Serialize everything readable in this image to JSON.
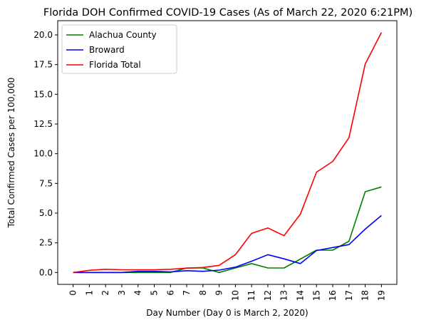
{
  "chart_data": {
    "type": "line",
    "title": "Florida DOH Confirmed COVID-19 Cases (As of March 22, 2020 6:21PM)",
    "xlabel": "Day Number (Day 0 is March 2, 2020)",
    "ylabel": "Total Confirmed Cases per 100,000",
    "x": [
      0,
      1,
      2,
      3,
      4,
      5,
      6,
      7,
      8,
      9,
      10,
      11,
      12,
      13,
      14,
      15,
      16,
      17,
      18,
      19
    ],
    "x_tick_labels": [
      "0",
      "1",
      "2",
      "3",
      "4",
      "5",
      "6",
      "7",
      "8",
      "9",
      "10",
      "11",
      "12",
      "13",
      "14",
      "15",
      "16",
      "17",
      "18",
      "19"
    ],
    "xlim": [
      -0.95,
      19.95
    ],
    "ylim": [
      -1.0,
      21.2
    ],
    "y_ticks": [
      0.0,
      2.5,
      5.0,
      7.5,
      10.0,
      12.5,
      15.0,
      17.5,
      20.0
    ],
    "y_tick_labels": [
      "0.0",
      "2.5",
      "5.0",
      "7.5",
      "10.0",
      "12.5",
      "15.0",
      "17.5",
      "20.0"
    ],
    "grid": false,
    "legend_position": "upper-left",
    "series": [
      {
        "name": "Alachua County",
        "color": "#008000",
        "values": [
          0,
          0,
          0,
          0,
          0,
          0,
          0,
          0.38,
          0.38,
          0,
          0.38,
          0.75,
          0.38,
          0.38,
          1.13,
          1.88,
          1.88,
          2.63,
          6.8,
          7.2
        ]
      },
      {
        "name": "Broward",
        "color": "#0000ff",
        "values": [
          0,
          0,
          0,
          0,
          0.1,
          0.1,
          0.05,
          0.15,
          0.1,
          0.2,
          0.45,
          0.95,
          1.5,
          1.15,
          0.75,
          1.85,
          2.1,
          2.35,
          3.65,
          4.8
        ]
      },
      {
        "name": "Florida Total",
        "color": "#ff0000",
        "values": [
          0,
          0.18,
          0.27,
          0.23,
          0.23,
          0.23,
          0.27,
          0.37,
          0.42,
          0.6,
          1.5,
          3.3,
          3.75,
          3.1,
          4.9,
          8.45,
          9.35,
          11.35,
          17.55,
          20.2
        ]
      }
    ]
  }
}
